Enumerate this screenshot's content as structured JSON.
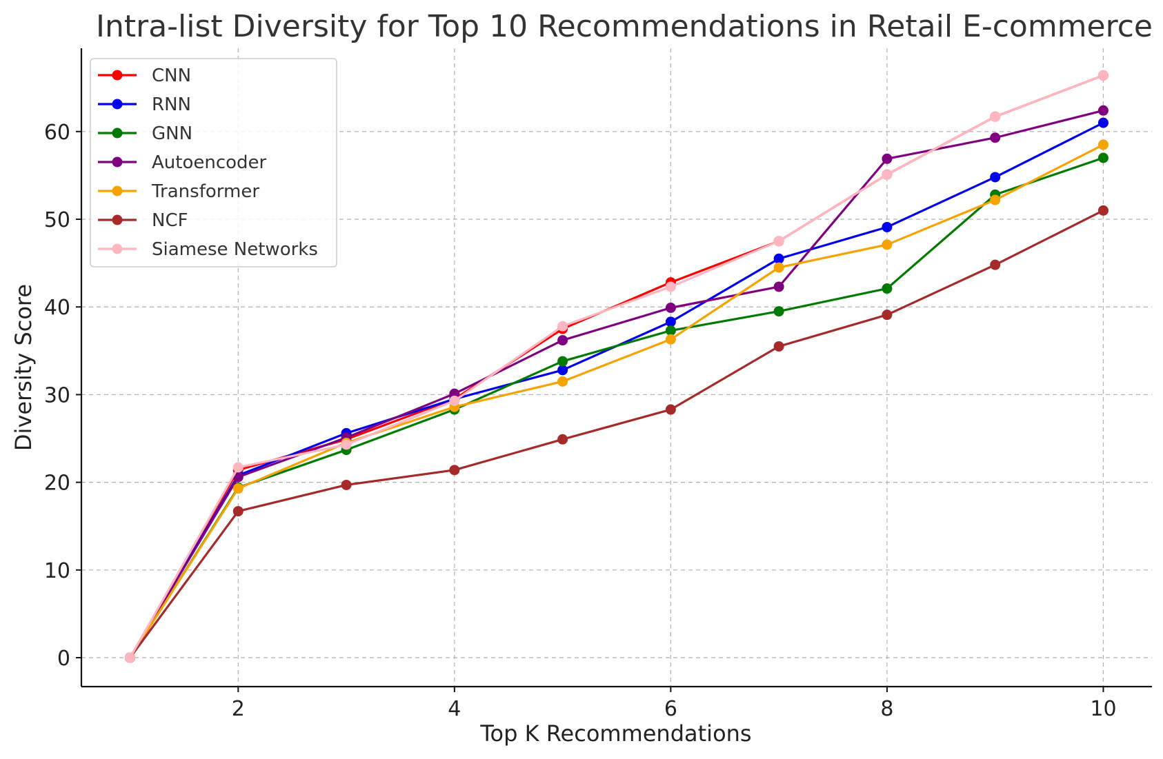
{
  "chart_data": {
    "type": "line",
    "title": "Intra-list Diversity for Top 10 Recommendations in Retail E-commerce",
    "xlabel": "Top K Recommendations",
    "ylabel": "Diversity Score",
    "x": [
      1,
      2,
      3,
      4,
      5,
      6,
      7,
      8,
      9,
      10
    ],
    "xlim": [
      0.55,
      10.45
    ],
    "ylim": [
      -3.3,
      69.5
    ],
    "xticks": [
      2,
      4,
      6,
      8,
      10
    ],
    "yticks": [
      0,
      10,
      20,
      30,
      40,
      50,
      60
    ],
    "grid": true,
    "legend_position": "upper-left",
    "series": [
      {
        "name": "CNN",
        "color": "#ff0000",
        "values": [
          0,
          21.4,
          24.9,
          29.5,
          37.5,
          42.8,
          47.5,
          55.1,
          61.7,
          66.4
        ]
      },
      {
        "name": "RNN",
        "color": "#0000ee",
        "values": [
          0,
          20.8,
          25.6,
          29.5,
          32.8,
          38.3,
          45.5,
          49.1,
          54.8,
          61.0
        ]
      },
      {
        "name": "GNN",
        "color": "#007a00",
        "values": [
          0,
          19.4,
          23.7,
          28.3,
          33.8,
          37.3,
          39.5,
          42.1,
          52.8,
          57.0
        ]
      },
      {
        "name": "Autoencoder",
        "color": "#7f007f",
        "values": [
          0,
          20.6,
          25.1,
          30.1,
          36.2,
          39.9,
          42.3,
          56.9,
          59.3,
          62.4
        ]
      },
      {
        "name": "Transformer",
        "color": "#f5a300",
        "values": [
          0,
          19.3,
          24.5,
          28.6,
          31.5,
          36.3,
          44.5,
          47.1,
          52.2,
          58.5
        ]
      },
      {
        "name": "NCF",
        "color": "#a52a2a",
        "values": [
          0,
          16.7,
          19.7,
          21.4,
          24.9,
          28.3,
          35.5,
          39.1,
          44.8,
          51.0
        ]
      },
      {
        "name": "Siamese Networks",
        "color": "#ffb6c1",
        "values": [
          0,
          21.7,
          24.3,
          29.3,
          37.8,
          42.3,
          47.5,
          55.1,
          61.7,
          66.4
        ]
      }
    ]
  }
}
